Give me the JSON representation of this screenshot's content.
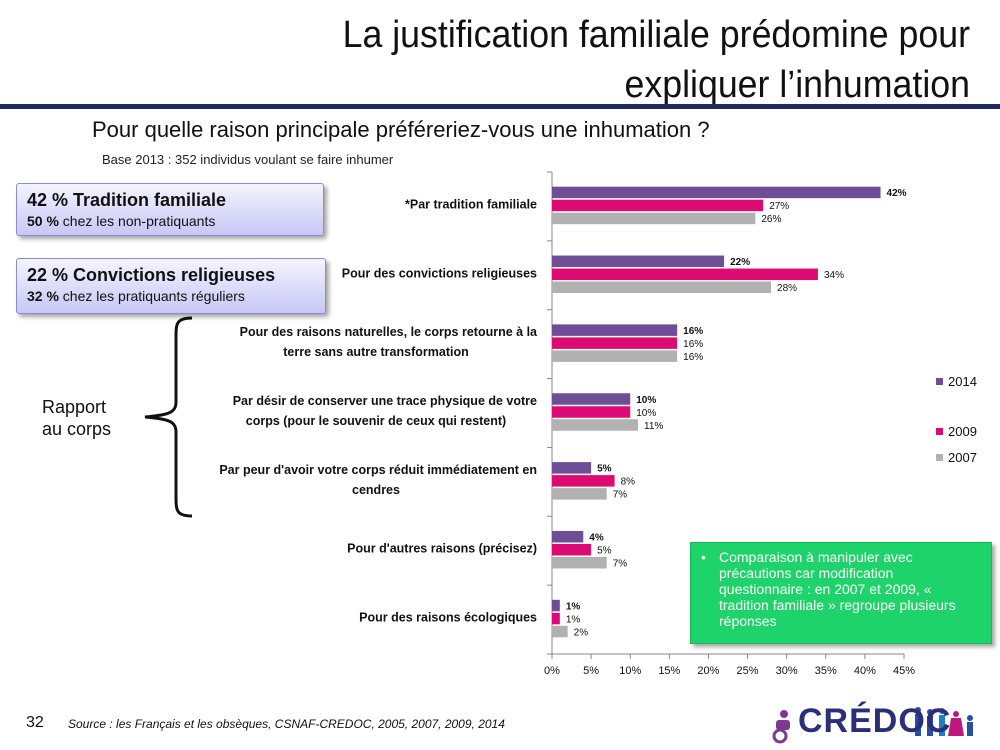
{
  "slide": {
    "title_line1": "La justification familiale prédomine pour",
    "title_line2": "expliquer l’inhumation",
    "question": "Pour quelle raison principale préféreriez-vous une inhumation ?",
    "base": "Base 2013 : 352 individus voulant se faire inhumer",
    "slide_number": "32",
    "source": "Source : les Français et les obsèques, CSNAF-CREDOC, 2005, 2007, 2009, 2014",
    "logo_text": "CRÉDOC"
  },
  "callouts": {
    "tradition": {
      "headline": "42 % Tradition familiale",
      "sub_strong": "50 %",
      "sub_text": " chez les non-pratiquants"
    },
    "convictions": {
      "headline": "22 % Convictions religieuses",
      "sub_strong": "32 %",
      "sub_text": " chez les pratiquants réguliers"
    },
    "bracket_label_line1": "Rapport",
    "bracket_label_line2": "au corps"
  },
  "note": {
    "bullet": "•",
    "text": "Comparaison à manipuler avec précautions car modification questionnaire : en 2007 et  2009, « tradition familiale » regroupe plusieurs réponses"
  },
  "colors": {
    "2014": "#6f4e98",
    "2009": "#dc0b73",
    "2007": "#b1b1b1",
    "title_rule": "#1f2a63",
    "note_bg": "#1ed36a"
  },
  "chart_data": {
    "type": "bar",
    "orientation": "horizontal",
    "categories": [
      "*Par tradition familiale",
      "Pour des convictions religieuses",
      "Pour des raisons naturelles, le corps retourne à la terre sans autre transformation",
      "Par désir de conserver une trace physique de votre corps (pour le souvenir de ceux qui restent)",
      "Par peur d'avoir votre corps réduit immédiatement en cendres",
      "Pour d'autres raisons (précisez)",
      "Pour des raisons écologiques"
    ],
    "category_lines": [
      [
        "*Par tradition familiale"
      ],
      [
        "Pour des convictions religieuses"
      ],
      [
        "Pour des raisons naturelles, le corps retourne à la",
        "terre sans autre transformation"
      ],
      [
        "Par désir de conserver une trace physique de votre",
        "corps (pour le souvenir de ceux qui restent)"
      ],
      [
        "Par peur d'avoir votre corps réduit immédiatement en",
        "cendres"
      ],
      [
        "Pour d'autres raisons (précisez)"
      ],
      [
        "Pour des raisons écologiques"
      ]
    ],
    "series": [
      {
        "name": "2014",
        "values": [
          42,
          22,
          16,
          10,
          5,
          4,
          1
        ],
        "color": "#6f4e98",
        "bold_labels": true
      },
      {
        "name": "2009",
        "values": [
          27,
          34,
          16,
          10,
          8,
          5,
          1
        ],
        "color": "#dc0b73",
        "bold_labels": false
      },
      {
        "name": "2007",
        "values": [
          26,
          28,
          16,
          11,
          7,
          7,
          2
        ],
        "color": "#b1b1b1",
        "bold_labels": false
      }
    ],
    "value_suffix": "%",
    "xlim": [
      0,
      45
    ],
    "xticks": [
      0,
      5,
      10,
      15,
      20,
      25,
      30,
      35,
      40,
      45
    ],
    "xtick_labels": [
      "0%",
      "5%",
      "10%",
      "15%",
      "20%",
      "25%",
      "30%",
      "35%",
      "40%",
      "45%"
    ],
    "grid": false,
    "legend_placement": "right"
  }
}
